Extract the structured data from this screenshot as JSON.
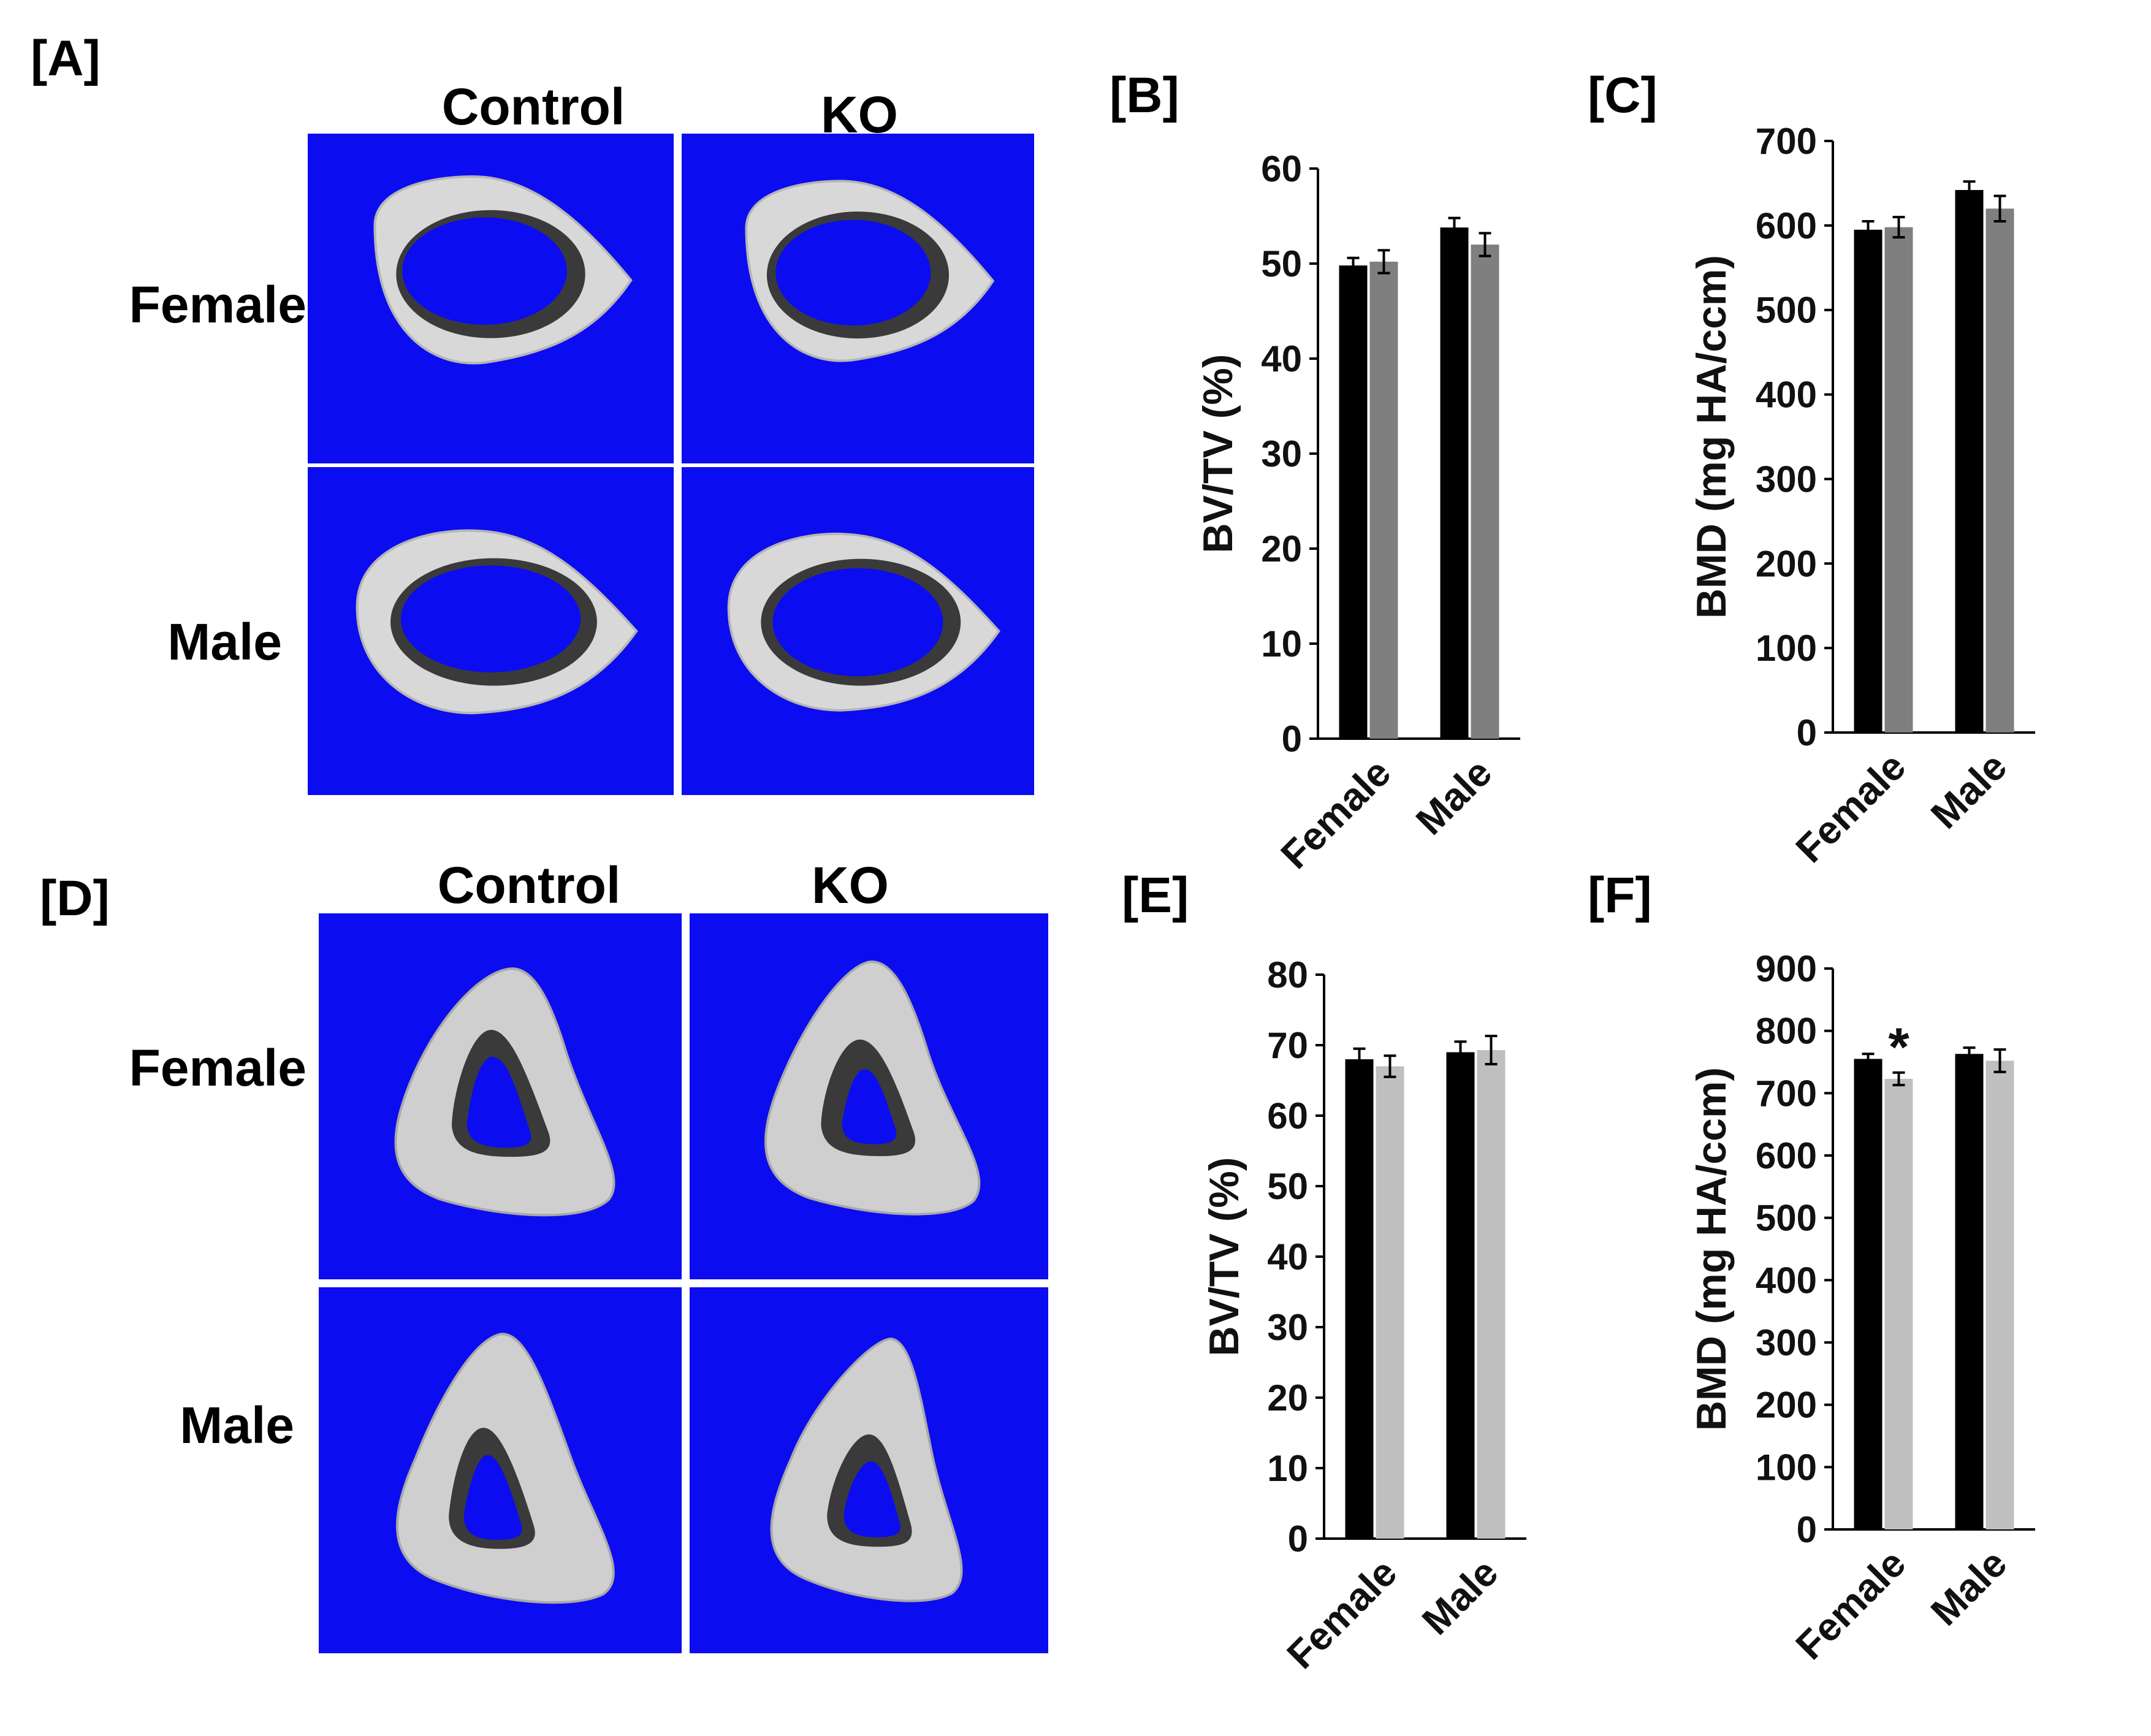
{
  "panels": {
    "A": {
      "label": "[A]",
      "col1": "Control",
      "col2": "KO",
      "row1": "Female",
      "row2": "Male"
    },
    "D": {
      "label": "[D]",
      "col1": "Control",
      "col2": "KO",
      "row1": "Female",
      "row2": "Male"
    }
  },
  "colors": {
    "control": "#000000",
    "ko_b_c": "#7f7f7f",
    "ko_e_f": "#bfbfbf",
    "background": "#0c0cf0",
    "bone": "#d4d4d4"
  },
  "chart_data": [
    {
      "id": "B",
      "label": "[B]",
      "type": "bar",
      "ylabel": "BV/TV (%)",
      "categories": [
        "Female",
        "Male"
      ],
      "ylim": [
        0,
        60
      ],
      "yticks": [
        0,
        10,
        20,
        30,
        40,
        50,
        60
      ],
      "series": [
        {
          "name": "Control",
          "values": [
            49.8,
            53.8
          ],
          "errors": [
            0.8,
            1.0
          ]
        },
        {
          "name": "KO",
          "values": [
            50.2,
            52.0
          ],
          "errors": [
            1.2,
            1.2
          ]
        }
      ],
      "annotations": []
    },
    {
      "id": "C",
      "label": "[C]",
      "type": "bar",
      "ylabel": "BMD (mg HA/ccm)",
      "categories": [
        "Female",
        "Male"
      ],
      "ylim": [
        0,
        700
      ],
      "yticks": [
        0,
        100,
        200,
        300,
        400,
        500,
        600,
        700
      ],
      "series": [
        {
          "name": "Control",
          "values": [
            595,
            642
          ],
          "errors": [
            10,
            10
          ]
        },
        {
          "name": "KO",
          "values": [
            598,
            620
          ],
          "errors": [
            12,
            15
          ]
        }
      ],
      "annotations": []
    },
    {
      "id": "E",
      "label": "[E]",
      "type": "bar",
      "ylabel": "BV/TV (%)",
      "categories": [
        "Female",
        "Male"
      ],
      "ylim": [
        0,
        80
      ],
      "yticks": [
        0,
        10,
        20,
        30,
        40,
        50,
        60,
        70,
        80
      ],
      "series": [
        {
          "name": "Control",
          "values": [
            68.0,
            69.0
          ],
          "errors": [
            1.5,
            1.5
          ]
        },
        {
          "name": "KO",
          "values": [
            67.0,
            69.3
          ],
          "errors": [
            1.5,
            2.0
          ]
        }
      ],
      "annotations": []
    },
    {
      "id": "F",
      "label": "[F]",
      "type": "bar",
      "ylabel": "BMD (mg HA/ccm)",
      "categories": [
        "Female",
        "Male"
      ],
      "ylim": [
        0,
        900
      ],
      "yticks": [
        0,
        100,
        200,
        300,
        400,
        500,
        600,
        700,
        800,
        900
      ],
      "series": [
        {
          "name": "Control",
          "values": [
            755,
            763
          ],
          "errors": [
            8,
            10
          ]
        },
        {
          "name": "KO",
          "values": [
            723,
            752
          ],
          "errors": [
            10,
            18
          ]
        }
      ],
      "annotations": [
        {
          "text": "*",
          "category": 0,
          "series": 1
        }
      ]
    }
  ]
}
